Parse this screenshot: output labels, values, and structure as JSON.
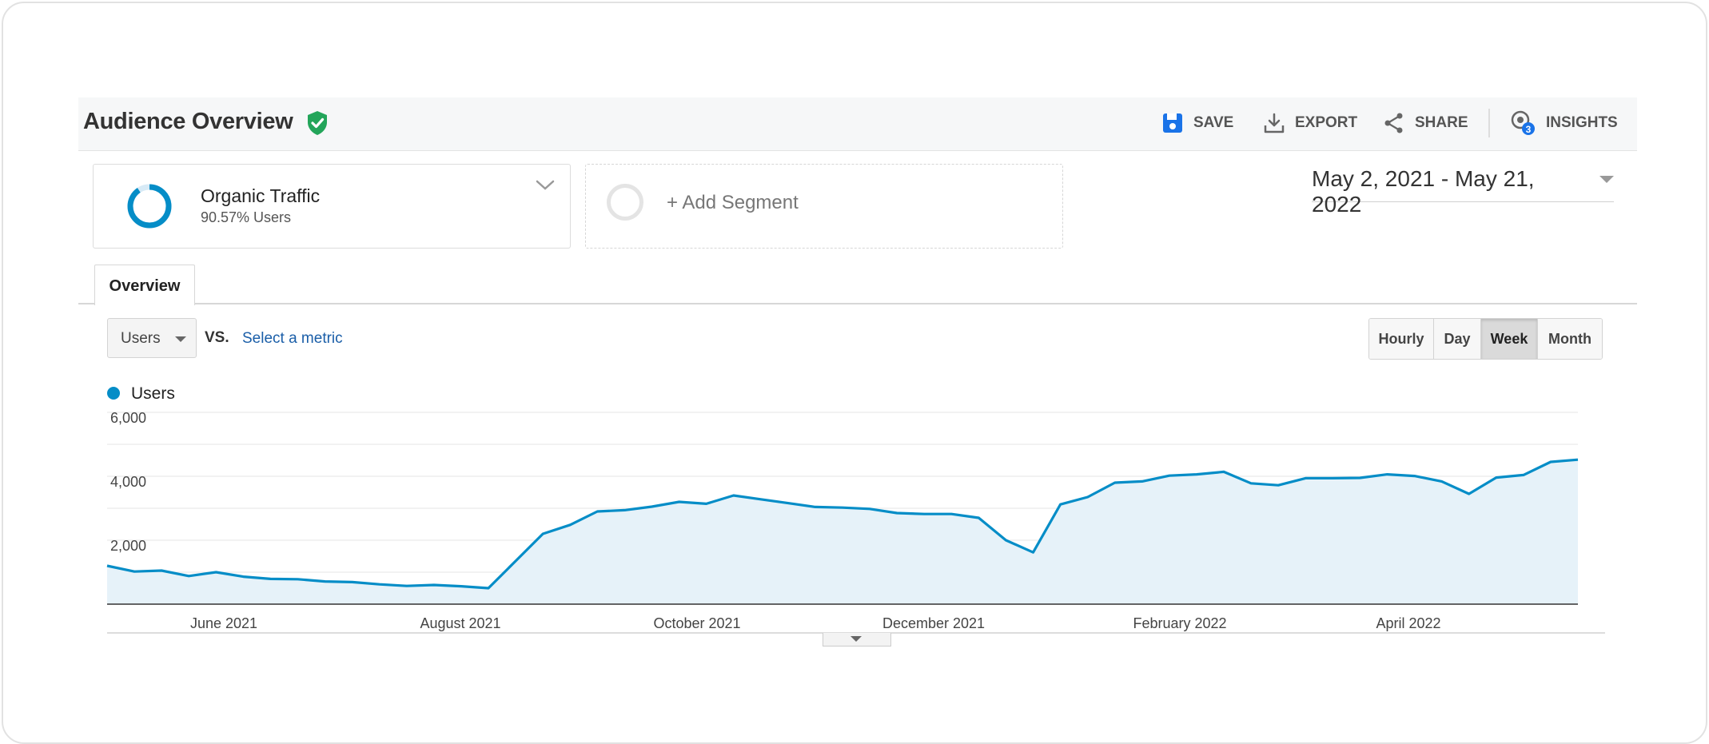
{
  "header": {
    "title": "Audience Overview",
    "actions": [
      {
        "label": "SAVE",
        "icon": "save-icon"
      },
      {
        "label": "EXPORT",
        "icon": "download-icon"
      },
      {
        "label": "SHARE",
        "icon": "share-icon"
      },
      {
        "label": "INSIGHTS",
        "icon": "insights-icon",
        "badge": "3"
      }
    ]
  },
  "segment": {
    "name": "Organic Traffic",
    "subtitle": "90.57% Users",
    "share": 0.9057,
    "color": "#058dc7"
  },
  "add_segment": {
    "label": "+ Add Segment"
  },
  "date_range": "May 2, 2021 - May 21, 2022",
  "tabs": [
    {
      "label": "Overview"
    }
  ],
  "controls": {
    "metric": "Users",
    "vs": "VS.",
    "select_metric": "Select a metric",
    "granularity": [
      "Hourly",
      "Day",
      "Week",
      "Month"
    ],
    "granularity_active": "Week"
  },
  "colors": {
    "line": "#058dc7",
    "area": "#e6f2f9",
    "verified": "#23a55a",
    "link": "#1a5ea8"
  },
  "chart_data": {
    "type": "area",
    "series": [
      {
        "name": "Users",
        "values": [
          1200,
          1020,
          1050,
          880,
          1000,
          860,
          790,
          780,
          710,
          690,
          620,
          570,
          600,
          560,
          500,
          1350,
          2200,
          2480,
          2900,
          2940,
          3050,
          3200,
          3140,
          3400,
          3280,
          3160,
          3040,
          3020,
          2980,
          2850,
          2820,
          2820,
          2700,
          2000,
          1620,
          3120,
          3350,
          3800,
          3840,
          4020,
          4060,
          4140,
          3780,
          3720,
          3940,
          3940,
          3950,
          4060,
          4010,
          3840,
          3450,
          3960,
          4040,
          4450,
          4520
        ]
      }
    ],
    "ylim": [
      0,
      6000
    ],
    "yticks": [
      "6,000",
      "4,000",
      "2,000"
    ],
    "xticks": [
      "June 2021",
      "August 2021",
      "October 2021",
      "December 2021",
      "February 2022",
      "April 2022"
    ],
    "xlabel": "",
    "ylabel": "",
    "legend": [
      "Users"
    ],
    "grid": true
  }
}
